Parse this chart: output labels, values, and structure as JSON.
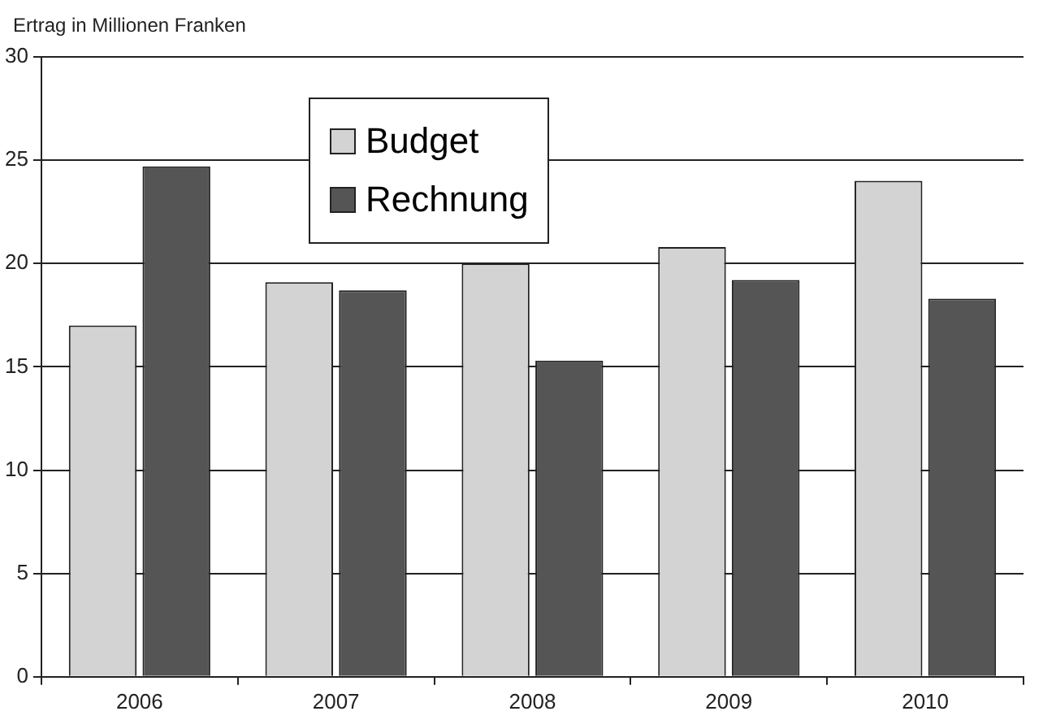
{
  "chart_data": {
    "type": "bar",
    "ylabel": "Ertrag in Millionen Franken",
    "categories": [
      "2006",
      "2007",
      "2008",
      "2009",
      "2010"
    ],
    "series": [
      {
        "name": "Budget",
        "color": "#d3d3d3",
        "values": [
          17,
          19.1,
          20,
          20.8,
          24
        ]
      },
      {
        "name": "Rechnung",
        "color": "#555555",
        "values": [
          24.7,
          18.7,
          15.3,
          19.2,
          18.3
        ]
      }
    ],
    "ylim": [
      0,
      30
    ],
    "yticks": [
      0,
      5,
      10,
      15,
      20,
      25,
      30
    ],
    "grid": "y",
    "legend": "top left"
  }
}
